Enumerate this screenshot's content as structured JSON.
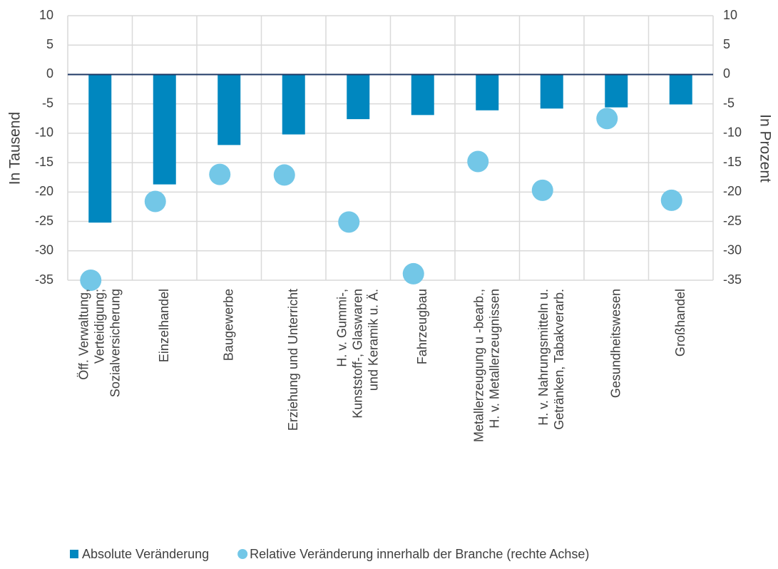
{
  "chart_data": {
    "type": "bar_scatter",
    "y_label": "In Tausend",
    "y2_label": "In Prozent",
    "categories": [
      "Öff. Verwaltung,\nVerteidigung;\nSozialversicherung",
      "Einzelhandel",
      "Baugewerbe",
      "Erziehung und Unterricht",
      "H. v. Gummi-,\nKunststoff-, Glaswaren\nund Keramik u. Ä.",
      "Fahrzeugbau",
      "Metallerzeugung u -bearb.,\nH. v. Metallerzeugnissen",
      "H. v. Nahrungsmitteln u.\nGetränken, Tabakverarb.",
      "Gesundheitswesen",
      "Großhandel"
    ],
    "series": [
      {
        "name": "Absolute Veränderung",
        "color": "#0087bf",
        "kind": "bar",
        "values": [
          -25.2,
          -18.7,
          -12,
          -10.2,
          -7.6,
          -6.9,
          -6.1,
          -5.8,
          -5.6,
          -5.1
        ]
      },
      {
        "name": "Relative Veränderung innerhalb der Branche (rechte Achse)",
        "color": "#73c7e7",
        "kind": "scatter",
        "axis": "y2",
        "values": [
          -35,
          -21.6,
          -17,
          -17.1,
          -25.1,
          -33.9,
          -14.8,
          -19.7,
          -7.5,
          -21.4
        ]
      }
    ],
    "ylim": [
      -35,
      10
    ],
    "yticks": [
      10,
      5,
      0,
      -5,
      -10,
      -15,
      -20,
      -25,
      -30,
      -35
    ],
    "y2lim": [
      -35,
      10
    ],
    "y2ticks": [
      10,
      5,
      0,
      -5,
      -10,
      -15,
      -20,
      -25,
      -30,
      -35
    ],
    "grid": true,
    "legend": "bottom"
  }
}
